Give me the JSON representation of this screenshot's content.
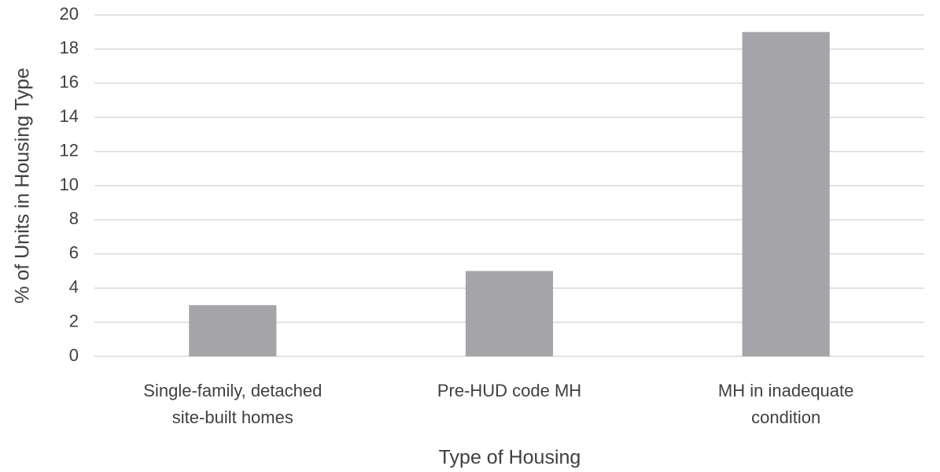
{
  "chart_data": {
    "type": "bar",
    "categories": [
      "Single-family, detached site-built homes",
      "Pre-HUD code MH",
      "MH in inadequate condition"
    ],
    "values": [
      3,
      5,
      19
    ],
    "color": "#a5a5a9",
    "ylim": [
      0,
      20
    ],
    "yticks": [
      0,
      2,
      4,
      6,
      8,
      10,
      12,
      14,
      16,
      18,
      20
    ],
    "grid": true,
    "xlabel": "Type of Housing",
    "ylabel": "% of Units in Housing Type"
  }
}
